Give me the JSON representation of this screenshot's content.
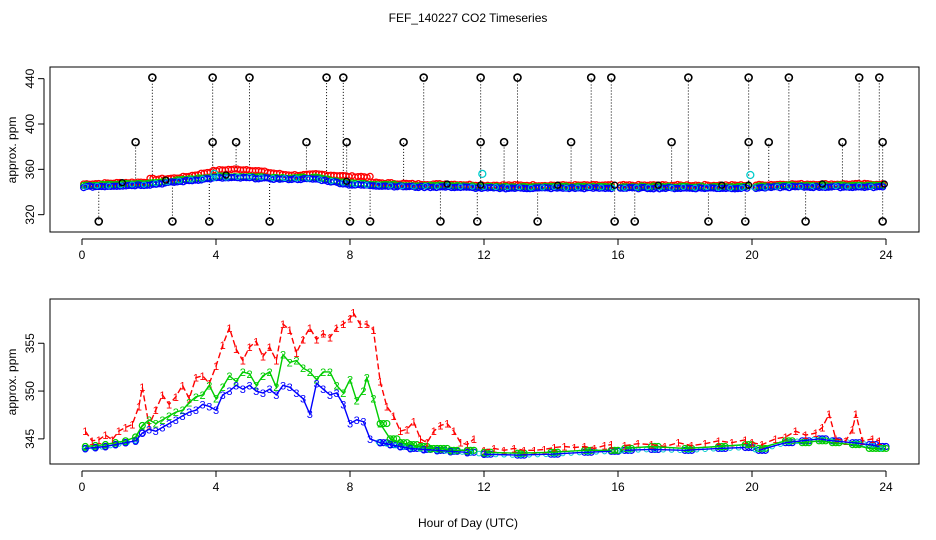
{
  "title": "FEF_140227  CO2 Timeseries",
  "xlabel": "Hour of Day (UTC)",
  "colors": {
    "s0": "#000000",
    "s1": "#ff0000",
    "s2": "#00cc00",
    "s3": "#0000ff",
    "s4": "#00cccc"
  },
  "chart_data": [
    {
      "type": "scatter",
      "ylabel": "approx. ppm",
      "xlim": [
        0,
        24
      ],
      "ylim": [
        310,
        445
      ],
      "xticks": [
        0,
        4,
        8,
        12,
        16,
        20,
        24
      ],
      "yticks": [
        320,
        360,
        400,
        440
      ],
      "cal_high": [
        2.1,
        3.9,
        5.0,
        7.3,
        7.8,
        10.2,
        11.9,
        13.0,
        15.2,
        15.8,
        18.1,
        19.9,
        21.1,
        23.2,
        23.8
      ],
      "cal_mid": [
        1.6,
        3.9,
        4.6,
        6.7,
        7.9,
        9.6,
        11.9,
        12.6,
        14.6,
        17.6,
        19.9,
        20.5,
        22.7,
        23.9
      ],
      "cal_low": [
        0.5,
        2.7,
        3.8,
        5.6,
        8.0,
        8.6,
        10.7,
        11.8,
        13.6,
        15.9,
        16.5,
        18.7,
        19.8,
        21.6,
        23.9
      ],
      "cal_levels": {
        "high": 441,
        "mid": 384,
        "low": 314
      },
      "series_level": [
        [
          0,
          345
        ],
        [
          1,
          346
        ],
        [
          2,
          347
        ],
        [
          3,
          350
        ],
        [
          4,
          353
        ],
        [
          5,
          353
        ],
        [
          6,
          352
        ],
        [
          7,
          352
        ],
        [
          8,
          347
        ],
        [
          9,
          346
        ],
        [
          10,
          345
        ],
        [
          11,
          345
        ],
        [
          12,
          344
        ],
        [
          16,
          344
        ],
        [
          20,
          344
        ],
        [
          21,
          345
        ],
        [
          22,
          345
        ],
        [
          24,
          345
        ]
      ]
    },
    {
      "type": "line",
      "ylabel": "approx. ppm",
      "xlim": [
        0,
        24
      ],
      "ylim": [
        343,
        359
      ],
      "xticks": [
        0,
        4,
        8,
        12,
        16,
        20,
        24
      ],
      "yticks": [
        345,
        350,
        355
      ],
      "series": [
        {
          "name": "1",
          "points": [
            [
              0.1,
              345.8
            ],
            [
              0.3,
              344.8
            ],
            [
              0.5,
              344.9
            ],
            [
              0.7,
              345.4
            ],
            [
              0.9,
              344.9
            ],
            [
              1.1,
              345.8
            ],
            [
              1.3,
              346.2
            ],
            [
              1.5,
              346.5
            ],
            [
              1.7,
              348.4
            ],
            [
              1.8,
              350.4
            ],
            [
              2.0,
              346.4
            ],
            [
              2.2,
              348.0
            ],
            [
              2.4,
              349.6
            ],
            [
              2.6,
              348.6
            ],
            [
              2.8,
              349.4
            ],
            [
              3.0,
              350.6
            ],
            [
              3.2,
              349.2
            ],
            [
              3.4,
              351.4
            ],
            [
              3.6,
              351.6
            ],
            [
              3.8,
              350.8
            ],
            [
              4.0,
              352.6
            ],
            [
              4.2,
              354.8
            ],
            [
              4.4,
              356.6
            ],
            [
              4.6,
              354.4
            ],
            [
              4.8,
              353.2
            ],
            [
              5.0,
              354.6
            ],
            [
              5.2,
              355.2
            ],
            [
              5.4,
              353.6
            ],
            [
              5.6,
              354.6
            ],
            [
              5.8,
              353.2
            ],
            [
              6.0,
              357.0
            ],
            [
              6.2,
              356.4
            ],
            [
              6.4,
              354.0
            ],
            [
              6.6,
              355.4
            ],
            [
              6.8,
              356.6
            ],
            [
              7.0,
              355.4
            ],
            [
              7.2,
              356.0
            ],
            [
              7.4,
              355.6
            ],
            [
              7.6,
              356.6
            ],
            [
              7.8,
              357.0
            ],
            [
              8.0,
              357.6
            ],
            [
              8.1,
              358.2
            ],
            [
              8.3,
              357.0
            ],
            [
              8.5,
              357.0
            ],
            [
              8.7,
              356.4
            ],
            [
              8.9,
              351.0
            ],
            [
              9.1,
              348.4
            ],
            [
              9.3,
              347.4
            ],
            [
              9.5,
              345.8
            ],
            [
              9.7,
              346.0
            ],
            [
              9.9,
              346.8
            ],
            [
              10.1,
              345.0
            ],
            [
              10.3,
              344.6
            ],
            [
              10.5,
              345.8
            ],
            [
              10.7,
              346.4
            ],
            [
              10.9,
              346.6
            ],
            [
              11.1,
              345.8
            ],
            [
              11.3,
              344.6
            ],
            [
              11.5,
              344.4
            ],
            [
              11.7,
              345.0
            ],
            [
              12.0,
              343.8
            ],
            [
              12.3,
              344.0
            ],
            [
              12.6,
              343.8
            ],
            [
              12.9,
              344.0
            ],
            [
              13.2,
              343.8
            ],
            [
              13.5,
              343.8
            ],
            [
              13.8,
              343.9
            ],
            [
              14.1,
              344.1
            ],
            [
              14.4,
              344.2
            ],
            [
              14.7,
              344.1
            ],
            [
              15.0,
              344.2
            ],
            [
              15.3,
              344.0
            ],
            [
              15.6,
              344.3
            ],
            [
              15.8,
              344.4
            ],
            [
              16.2,
              344.3
            ],
            [
              16.6,
              344.5
            ],
            [
              17.0,
              344.4
            ],
            [
              17.4,
              344.2
            ],
            [
              17.8,
              344.6
            ],
            [
              18.2,
              344.3
            ],
            [
              18.6,
              344.5
            ],
            [
              19.0,
              344.8
            ],
            [
              19.4,
              344.6
            ],
            [
              19.8,
              344.9
            ],
            [
              20.0,
              344.6
            ],
            [
              20.3,
              344.4
            ],
            [
              20.7,
              345.0
            ],
            [
              21.0,
              345.2
            ],
            [
              21.3,
              345.8
            ],
            [
              21.6,
              345.4
            ],
            [
              21.9,
              345.6
            ],
            [
              22.1,
              346.2
            ],
            [
              22.3,
              347.6
            ],
            [
              22.5,
              345.0
            ],
            [
              22.8,
              344.8
            ],
            [
              23.0,
              346.0
            ],
            [
              23.1,
              347.6
            ],
            [
              23.3,
              344.8
            ],
            [
              23.6,
              345.0
            ],
            [
              23.8,
              344.8
            ]
          ]
        },
        {
          "name": "2",
          "points": [
            [
              0.1,
              344.2
            ],
            [
              0.4,
              344.3
            ],
            [
              0.7,
              344.4
            ],
            [
              1.0,
              344.6
            ],
            [
              1.3,
              344.8
            ],
            [
              1.6,
              345.2
            ],
            [
              1.8,
              346.4
            ],
            [
              2.0,
              347.0
            ],
            [
              2.2,
              346.6
            ],
            [
              2.4,
              347.0
            ],
            [
              2.6,
              347.4
            ],
            [
              2.8,
              347.8
            ],
            [
              3.0,
              348.0
            ],
            [
              3.2,
              348.8
            ],
            [
              3.4,
              349.4
            ],
            [
              3.6,
              349.6
            ],
            [
              3.8,
              350.6
            ],
            [
              4.0,
              349.2
            ],
            [
              4.2,
              350.4
            ],
            [
              4.4,
              351.6
            ],
            [
              4.6,
              351.0
            ],
            [
              4.8,
              352.0
            ],
            [
              5.0,
              351.8
            ],
            [
              5.2,
              350.6
            ],
            [
              5.4,
              351.6
            ],
            [
              5.6,
              352.0
            ],
            [
              5.8,
              350.4
            ],
            [
              6.0,
              353.8
            ],
            [
              6.2,
              353.0
            ],
            [
              6.4,
              353.2
            ],
            [
              6.6,
              352.4
            ],
            [
              6.8,
              352.0
            ],
            [
              7.0,
              351.2
            ],
            [
              7.2,
              352.0
            ],
            [
              7.4,
              352.0
            ],
            [
              7.6,
              350.6
            ],
            [
              7.8,
              349.8
            ],
            [
              8.0,
              351.2
            ],
            [
              8.2,
              349.0
            ],
            [
              8.4,
              350.0
            ],
            [
              8.5,
              351.4
            ],
            [
              8.7,
              349.2
            ],
            [
              8.9,
              346.6
            ],
            [
              9.2,
              345.0
            ],
            [
              9.5,
              344.6
            ],
            [
              9.8,
              344.4
            ],
            [
              10.1,
              344.2
            ],
            [
              10.4,
              344.0
            ],
            [
              10.7,
              344.0
            ],
            [
              11.0,
              343.8
            ],
            [
              11.5,
              343.8
            ],
            [
              12.0,
              343.6
            ],
            [
              13.0,
              343.5
            ],
            [
              14.0,
              343.6
            ],
            [
              15.0,
              343.8
            ],
            [
              15.8,
              343.8
            ],
            [
              16.2,
              344.0
            ],
            [
              17.0,
              344.2
            ],
            [
              18.0,
              344.0
            ],
            [
              19.0,
              344.2
            ],
            [
              19.8,
              344.4
            ],
            [
              20.2,
              344.0
            ],
            [
              21.0,
              344.8
            ],
            [
              21.5,
              344.6
            ],
            [
              22.0,
              344.8
            ],
            [
              22.4,
              344.6
            ],
            [
              23.0,
              344.4
            ],
            [
              23.5,
              344.0
            ],
            [
              23.8,
              344.0
            ]
          ]
        },
        {
          "name": "3",
          "points": [
            [
              0.1,
              344.0
            ],
            [
              0.4,
              344.1
            ],
            [
              0.7,
              344.2
            ],
            [
              1.0,
              344.4
            ],
            [
              1.3,
              344.6
            ],
            [
              1.6,
              344.8
            ],
            [
              1.8,
              345.6
            ],
            [
              2.0,
              346.0
            ],
            [
              2.2,
              345.8
            ],
            [
              2.4,
              346.2
            ],
            [
              2.6,
              346.6
            ],
            [
              2.8,
              347.0
            ],
            [
              3.0,
              347.4
            ],
            [
              3.2,
              347.8
            ],
            [
              3.4,
              348.0
            ],
            [
              3.6,
              348.6
            ],
            [
              3.8,
              348.4
            ],
            [
              4.0,
              348.0
            ],
            [
              4.2,
              349.6
            ],
            [
              4.4,
              350.0
            ],
            [
              4.6,
              350.6
            ],
            [
              4.8,
              350.2
            ],
            [
              5.0,
              350.6
            ],
            [
              5.2,
              350.0
            ],
            [
              5.4,
              349.8
            ],
            [
              5.6,
              350.2
            ],
            [
              5.8,
              349.6
            ],
            [
              6.0,
              350.6
            ],
            [
              6.2,
              350.4
            ],
            [
              6.4,
              349.8
            ],
            [
              6.6,
              349.2
            ],
            [
              6.8,
              347.6
            ],
            [
              7.0,
              350.8
            ],
            [
              7.2,
              350.2
            ],
            [
              7.4,
              349.6
            ],
            [
              7.6,
              349.8
            ],
            [
              7.8,
              348.6
            ],
            [
              8.0,
              346.6
            ],
            [
              8.2,
              347.0
            ],
            [
              8.4,
              346.8
            ],
            [
              8.6,
              345.0
            ],
            [
              8.9,
              344.6
            ],
            [
              9.2,
              344.4
            ],
            [
              9.5,
              344.2
            ],
            [
              9.8,
              344.0
            ],
            [
              10.2,
              343.9
            ],
            [
              10.6,
              343.8
            ],
            [
              11.0,
              343.7
            ],
            [
              11.5,
              343.6
            ],
            [
              12.0,
              343.4
            ],
            [
              13.0,
              343.3
            ],
            [
              14.0,
              343.4
            ],
            [
              15.0,
              343.6
            ],
            [
              15.8,
              343.7
            ],
            [
              16.2,
              343.8
            ],
            [
              17.0,
              343.9
            ],
            [
              18.0,
              343.8
            ],
            [
              19.0,
              344.0
            ],
            [
              19.8,
              344.1
            ],
            [
              20.2,
              343.8
            ],
            [
              21.0,
              344.6
            ],
            [
              21.5,
              344.8
            ],
            [
              22.0,
              345.0
            ],
            [
              22.4,
              344.8
            ],
            [
              23.0,
              344.6
            ],
            [
              23.5,
              344.4
            ],
            [
              23.8,
              344.2
            ]
          ]
        }
      ]
    }
  ]
}
